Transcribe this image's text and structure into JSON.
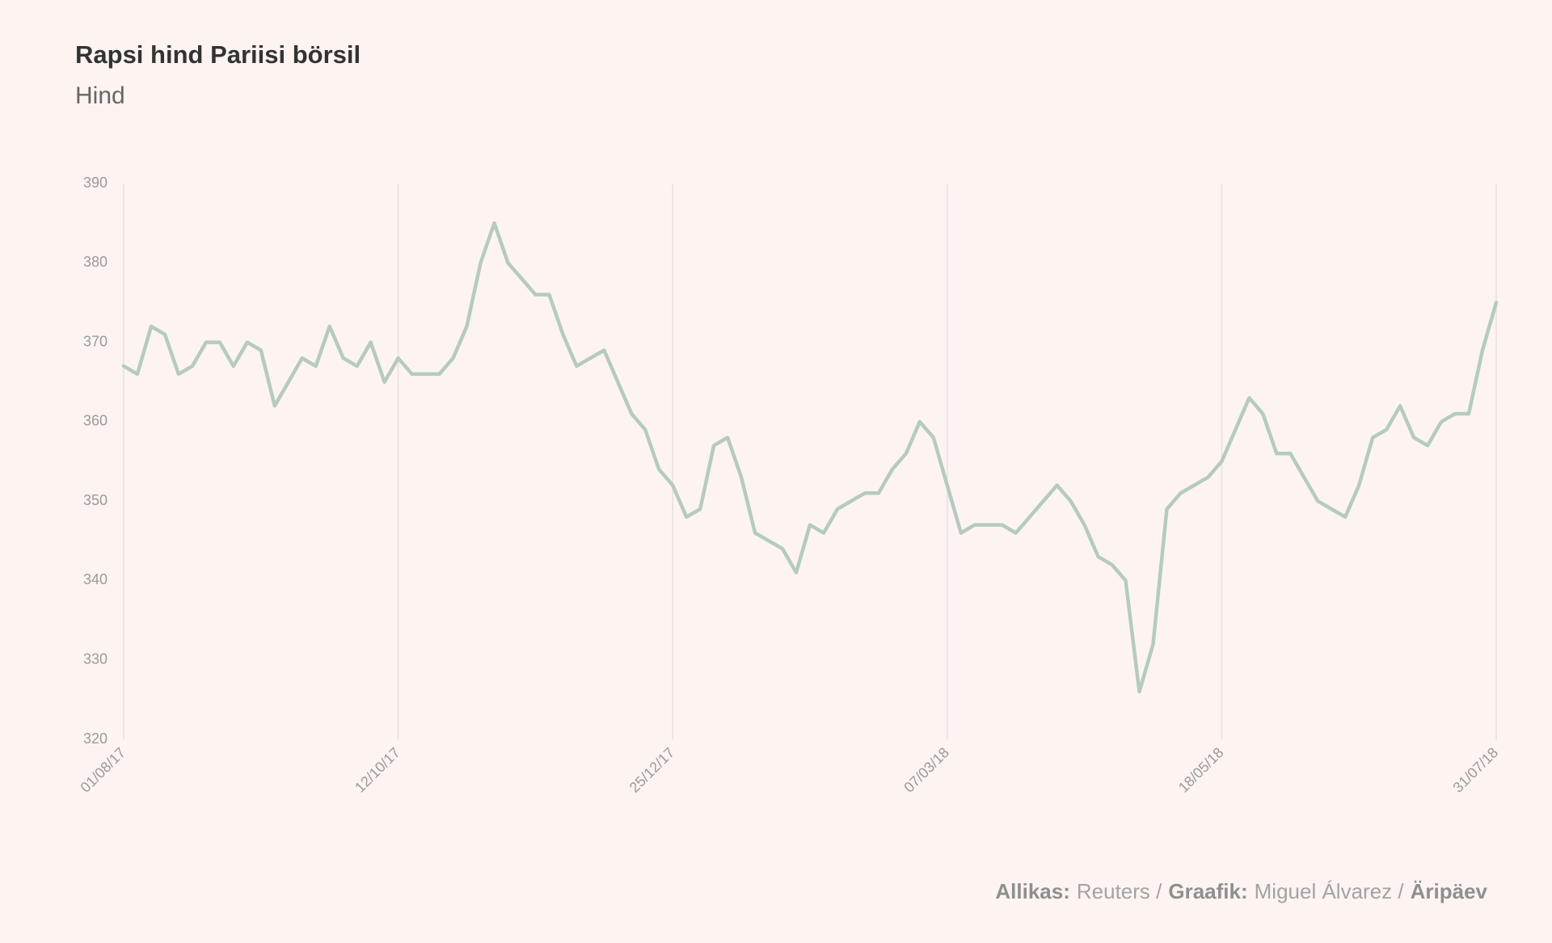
{
  "chart_data": {
    "type": "line",
    "title": "Rapsi hind Pariisi börsil",
    "subtitle": "Hind",
    "categories": [
      "01/08/17",
      null,
      null,
      null,
      null,
      null,
      null,
      null,
      null,
      null,
      null,
      null,
      null,
      null,
      null,
      null,
      null,
      null,
      null,
      null,
      "12/10/17",
      null,
      null,
      null,
      null,
      null,
      null,
      null,
      null,
      null,
      null,
      null,
      null,
      null,
      null,
      null,
      null,
      null,
      null,
      null,
      "25/12/17",
      null,
      null,
      null,
      null,
      null,
      null,
      null,
      null,
      null,
      null,
      null,
      null,
      null,
      null,
      null,
      null,
      null,
      null,
      null,
      "07/03/18",
      null,
      null,
      null,
      null,
      null,
      null,
      null,
      null,
      null,
      null,
      null,
      null,
      null,
      null,
      null,
      null,
      null,
      null,
      null,
      "18/05/18",
      null,
      null,
      null,
      null,
      null,
      null,
      null,
      null,
      null,
      null,
      null,
      null,
      null,
      null,
      null,
      null,
      null,
      null,
      null,
      "31/07/18"
    ],
    "series": [
      {
        "name": "Hind",
        "color": "#b5cbbd",
        "values": [
          367,
          366,
          372,
          371,
          366,
          367,
          370,
          370,
          367,
          370,
          369,
          362,
          365,
          368,
          367,
          372,
          368,
          367,
          370,
          365,
          368,
          366,
          366,
          366,
          368,
          372,
          380,
          385,
          380,
          378,
          376,
          376,
          371,
          367,
          368,
          369,
          365,
          361,
          359,
          354,
          352,
          348,
          349,
          357,
          358,
          353,
          346,
          345,
          344,
          341,
          347,
          346,
          349,
          350,
          351,
          351,
          354,
          356,
          360,
          358,
          352,
          346,
          347,
          347,
          347,
          346,
          348,
          350,
          352,
          350,
          347,
          343,
          342,
          340,
          326,
          332,
          349,
          351,
          352,
          353,
          355,
          359,
          363,
          361,
          356,
          356,
          353,
          350,
          349,
          348,
          352,
          358,
          359,
          362,
          358,
          357,
          360,
          361,
          361,
          369,
          375
        ]
      }
    ],
    "ylim": [
      320,
      390
    ],
    "yticks": [
      320,
      330,
      340,
      350,
      360,
      370,
      380,
      390
    ],
    "grid": "x",
    "footer": [
      {
        "text": "Allikas:",
        "bold": true
      },
      {
        "text": "Reuters /",
        "bold": false
      },
      {
        "text": "Graafik:",
        "bold": true
      },
      {
        "text": "Miguel Álvarez /",
        "bold": false
      },
      {
        "text": "Äripäev",
        "bold": true
      }
    ]
  }
}
